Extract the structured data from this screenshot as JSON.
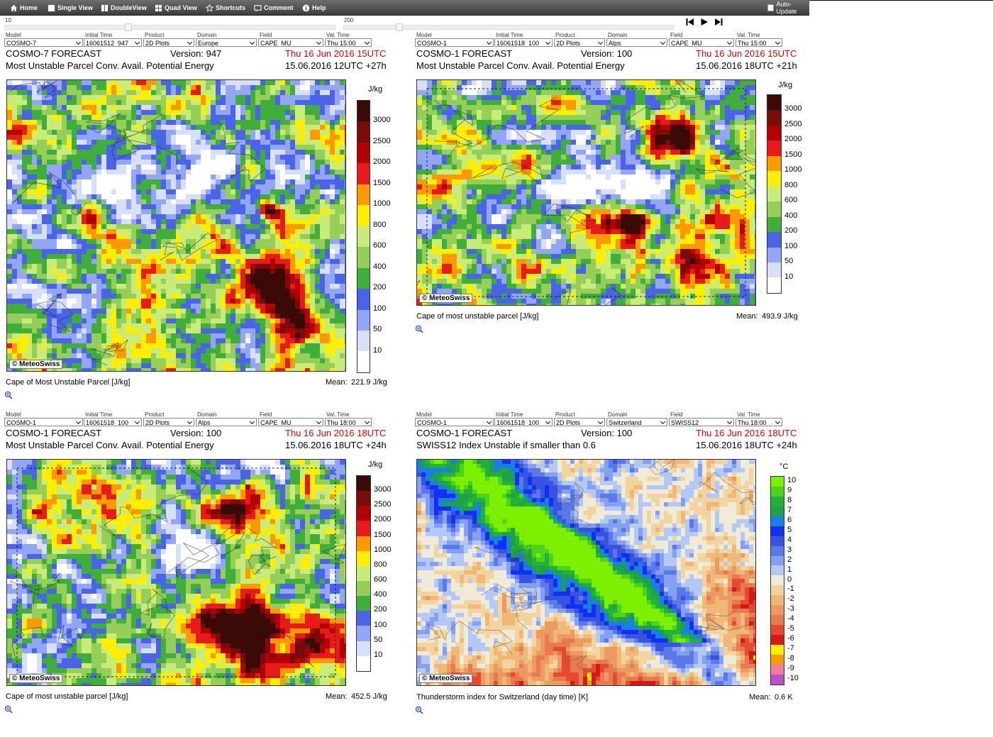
{
  "toolbar": {
    "home": "Home",
    "single_view": "Single View",
    "double_view": "DoubleView",
    "quad_view": "Quad View",
    "shortcuts": "Shortcuts",
    "comment": "Comment",
    "help": "Help",
    "auto_update": "Auto-Update"
  },
  "slider": {
    "left_value": "10",
    "right_value": "200"
  },
  "labels": {
    "model": "Model",
    "initial_time": "Initial Time",
    "product": "Product",
    "domain": "Domain",
    "field": "Field",
    "val_time": "Val. Time"
  },
  "panels": [
    {
      "model": "COSMO-7",
      "initial_time": "16061512_947",
      "product": "2D Plots",
      "domain": "Europe",
      "field": "CAPE_MU",
      "val_time": "Thu 15:00",
      "forecast_title": "COSMO-7 FORECAST",
      "version": "Version: 947",
      "valid": "Thu 16 Jun 2016 15UTC",
      "description": "Most Unstable Parcel Conv. Avail. Potential Energy",
      "run": "15.06.2016 12UTC +27h",
      "credit": "© MeteoSwiss",
      "unit": "J/kg",
      "legend": [
        "3000",
        "2500",
        "2000",
        "1500",
        "1000",
        "800",
        "600",
        "400",
        "200",
        "100",
        "50",
        "10"
      ],
      "caption": "Cape of Most Unstable Parcel [J/kg]",
      "mean_label": "Mean:",
      "mean_value": "221.9 J/kg"
    },
    {
      "model": "COSMO-1",
      "initial_time": "16061518_100",
      "product": "2D Plots",
      "domain": "Alps",
      "field": "CAPE_MU",
      "val_time": "Thu 15:00",
      "forecast_title": "COSMO-1 FORECAST",
      "version": "Version: 100",
      "valid": "Thu 16 Jun 2016 15UTC",
      "description": "Most Unstable Parcel Conv. Avail. Potential Energy",
      "run": "15.06.2016 18UTC +21h",
      "credit": "© MeteoSwiss",
      "unit": "J/kg",
      "legend": [
        "3000",
        "2500",
        "2000",
        "1500",
        "1000",
        "800",
        "600",
        "400",
        "200",
        "100",
        "50",
        "10"
      ],
      "caption": "Cape of most unstable parcel [J/kg]",
      "mean_label": "Mean:",
      "mean_value": "493.9 J/kg"
    },
    {
      "model": "COSMO-1",
      "initial_time": "16061518_100",
      "product": "2D Plots",
      "domain": "Alps",
      "field": "CAPE_MU",
      "val_time": "Thu 18:00",
      "forecast_title": "COSMO-1 FORECAST",
      "version": "Version: 100",
      "valid": "Thu 16 Jun 2016 18UTC",
      "description": "Most Unstable Parcel Conv. Avail. Potential Energy",
      "run": "15.06.2016 18UTC +24h",
      "credit": "© MeteoSwiss",
      "unit": "J/kg",
      "legend": [
        "3000",
        "2500",
        "2000",
        "1500",
        "1000",
        "800",
        "600",
        "400",
        "200",
        "100",
        "50",
        "10"
      ],
      "caption": "Cape of most unstable parcel [J/kg]",
      "mean_label": "Mean:",
      "mean_value": "452.5 J/kg"
    },
    {
      "model": "COSMO-1",
      "initial_time": "16061518_100",
      "product": "2D Plots",
      "domain": "Switzerland",
      "field": "SWISS12",
      "val_time": "Thu 18:00",
      "forecast_title": "COSMO-1 FORECAST",
      "version": "Version: 100",
      "valid": "Thu 16 Jun 2016 18UTC",
      "description": "SWISS12 Index Unstable if smaller than 0.6",
      "run": "15.06.2016 18UTC +24h",
      "credit": "© MeteoSwiss",
      "unit": "°C",
      "legend": [
        "10",
        "9",
        "8",
        "7",
        "6",
        "5",
        "4",
        "3",
        "2",
        "1",
        "0",
        "-1",
        "-2",
        "-3",
        "-4",
        "-5",
        "-6",
        "-7",
        "-8",
        "-9",
        "-10"
      ],
      "caption": "Thunderstorm index for Switzerland (day time) [K]",
      "mean_label": "Mean:",
      "mean_value": "0.6 K"
    }
  ],
  "colors": {
    "cape_scale": [
      "#3a0a06",
      "#7a0b0b",
      "#b30000",
      "#e81b1b",
      "#ff9900",
      "#ffee00",
      "#c8ec7a",
      "#95cf5a",
      "#3fae3a",
      "#4b63e8",
      "#93a6f5",
      "#d8dff9",
      "#ffffff"
    ],
    "swiss_scale": [
      "#7cf000",
      "#4bd41a",
      "#22b23a",
      "#20a048",
      "#1a7ee8",
      "#1230f0",
      "#3a52e0",
      "#5a78e8",
      "#84a0f0",
      "#b4c8f5",
      "#f0ead8",
      "#f2d4a0",
      "#f0b878",
      "#ec9a62",
      "#e67a52",
      "#e44a30",
      "#d81818",
      "#ffee00",
      "#f4a000",
      "#f07aa0",
      "#c050c8"
    ]
  }
}
